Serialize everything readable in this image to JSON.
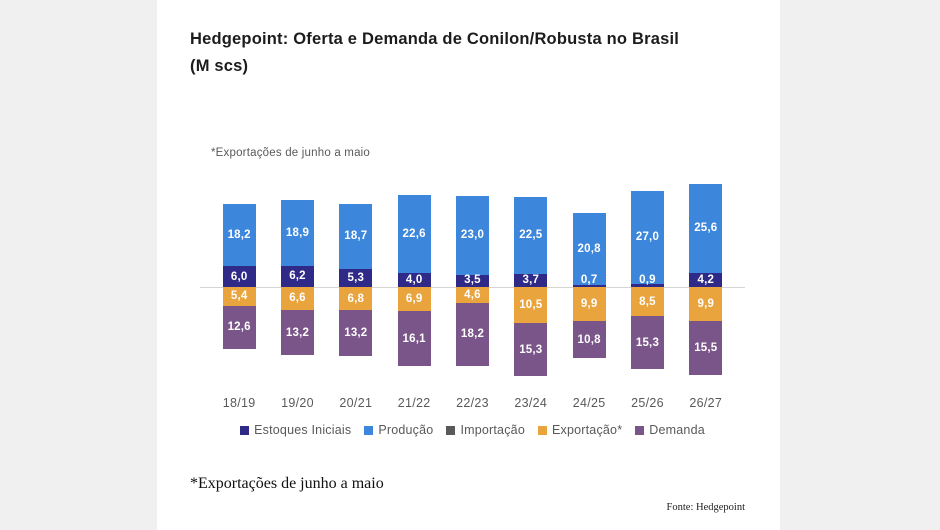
{
  "page": {
    "title_line1": "Hedgepoint: Oferta e Demanda de Conilon/Robusta no Brasil",
    "title_line2": "(M scs)",
    "chart_note": "*Exportações de junho a maio",
    "footnote": "*Exportações de junho a maio",
    "source": "Fonte: Hedgepoint"
  },
  "colors": {
    "estoques_iniciais": "#2f2a87",
    "producao": "#3c86db",
    "importacao": "#595959",
    "exportacao": "#e9a43e",
    "demanda": "#7a5589",
    "axis_line": "#d5d5d5",
    "text_gray": "#595959",
    "page_margin": "#f0f0f0",
    "bar_label": "#ffffff"
  },
  "chart_data": {
    "type": "bar",
    "variant": "diverging-stacked",
    "title": "Hedgepoint: Oferta e Demanda de Conilon/Robusta no Brasil (M scs)",
    "note": "*Exportações de junho a maio",
    "unit": "M scs",
    "grid": false,
    "legend_position": "bottom",
    "value_format": "comma-decimal-1",
    "categories": [
      "18/19",
      "19/20",
      "20/21",
      "21/22",
      "22/23",
      "23/24",
      "24/25",
      "25/26",
      "26/27"
    ],
    "series": [
      {
        "name": "Estoques Iniciais",
        "color": "#2f2a87",
        "direction": "up",
        "values": [
          6.0,
          6.2,
          5.3,
          4.0,
          3.5,
          3.7,
          0.7,
          0.9,
          4.2
        ]
      },
      {
        "name": "Produção",
        "color": "#3c86db",
        "direction": "up",
        "values": [
          18.2,
          18.9,
          18.7,
          22.6,
          23.0,
          22.5,
          20.8,
          27.0,
          25.6
        ]
      },
      {
        "name": "Importação",
        "color": "#595959",
        "direction": "up",
        "values": [
          0,
          0,
          0,
          0,
          0,
          0,
          0,
          0,
          0
        ]
      },
      {
        "name": "Exportação*",
        "color": "#e9a43e",
        "direction": "down",
        "values": [
          5.4,
          6.6,
          6.8,
          6.9,
          4.6,
          10.5,
          9.9,
          8.5,
          9.9
        ]
      },
      {
        "name": "Demanda",
        "color": "#7a5589",
        "direction": "down",
        "values": [
          12.6,
          13.2,
          13.2,
          16.1,
          18.2,
          15.3,
          10.8,
          15.3,
          15.5
        ]
      }
    ]
  }
}
